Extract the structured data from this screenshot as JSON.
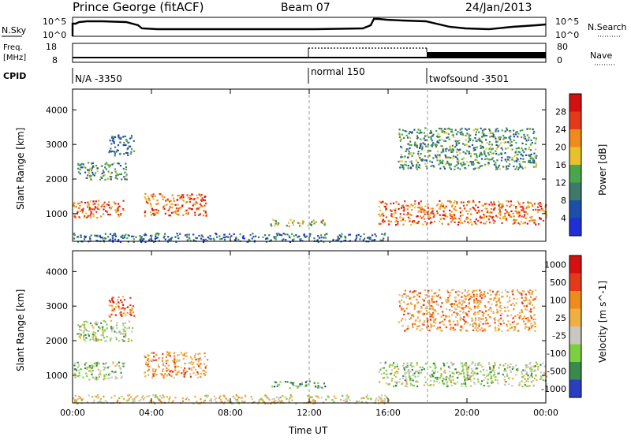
{
  "header": {
    "station": "Prince George (fitACF)",
    "beam": "Beam 07",
    "date": "24/Jan/2013"
  },
  "top_panels": {
    "nsky_label": "N.Sky",
    "nsky_tick_top": "10^5",
    "nsky_tick_bottom": "10^0",
    "nsearch_tick_top": "10^5",
    "nsearch_tick_bottom": "10^0",
    "nsearch_label": "N.Search",
    "freq_label_1": "Freq.",
    "freq_label_2": "[MHz]",
    "freq_tick_top": "18",
    "freq_tick_bottom": "8",
    "nave_tick_top": "80",
    "nave_tick_bottom": "0",
    "nave_label": "Nave",
    "cpid_label": "CPID",
    "cpid_segments": [
      {
        "label": "N/A -3350",
        "start_hour": 0
      },
      {
        "label": "normal 150",
        "start_hour": 12
      },
      {
        "label": "twofsound -3501",
        "start_hour": 18
      }
    ]
  },
  "chart_data": [
    {
      "type": "heatmap",
      "panel": "power",
      "ylabel": "Slant Range [km]",
      "xlabel": "",
      "xlim": [
        0,
        24
      ],
      "ylim": [
        200,
        4600
      ],
      "yticks": [
        1000,
        2000,
        3000,
        4000
      ],
      "colorbar": {
        "label": "Power [dB]",
        "ticks": [
          "4",
          "8",
          "12",
          "16",
          "20",
          "24",
          "28"
        ],
        "colors": [
          "#1f2fd8",
          "#1e4fa8",
          "#3d7a6a",
          "#4aa64a",
          "#e8c22c",
          "#f08a1c",
          "#e53a1a",
          "#d41010"
        ]
      },
      "echo_regions": [
        {
          "t0": 0.0,
          "t1": 2.6,
          "r0": 900,
          "r1": 1400,
          "level": 6
        },
        {
          "t0": 0.2,
          "t1": 2.8,
          "r0": 2000,
          "r1": 2500,
          "level": 3
        },
        {
          "t0": 1.8,
          "t1": 3.1,
          "r0": 2700,
          "r1": 3300,
          "level": 2
        },
        {
          "t0": 3.6,
          "t1": 6.8,
          "r0": 950,
          "r1": 1600,
          "level": 6
        },
        {
          "t0": 10.0,
          "t1": 12.8,
          "r0": 650,
          "r1": 850,
          "level": 4
        },
        {
          "t0": 15.5,
          "t1": 24.0,
          "r0": 700,
          "r1": 1400,
          "level": 6
        },
        {
          "t0": 16.5,
          "t1": 23.5,
          "r0": 2300,
          "r1": 3500,
          "level": 3
        },
        {
          "t0": 0.0,
          "t1": 16.0,
          "r0": 200,
          "r1": 450,
          "level": 2
        }
      ]
    },
    {
      "type": "heatmap",
      "panel": "velocity",
      "ylabel": "Slant Range [km]",
      "xlabel": "Time UT",
      "xlim": [
        0,
        24
      ],
      "ylim": [
        200,
        4600
      ],
      "yticks": [
        1000,
        2000,
        3000,
        4000
      ],
      "xticks": [
        "00:00",
        "04:00",
        "08:00",
        "12:00",
        "16:00",
        "20:00",
        "00:00"
      ],
      "colorbar": {
        "label": "Velocity [m s^-1]",
        "ticks": [
          "1000",
          "500",
          "100",
          "25",
          "-25",
          "-100",
          "-500",
          "-1000"
        ],
        "colors": [
          "#2a3fc0",
          "#3a8a4a",
          "#7bd040",
          "#c8c8c0",
          "#f0b040",
          "#f08a1c",
          "#e53a1a",
          "#d41010"
        ]
      },
      "echo_regions": [
        {
          "t0": 0.0,
          "t1": 2.6,
          "r0": 900,
          "r1": 1400,
          "level": 3
        },
        {
          "t0": 0.2,
          "t1": 3.0,
          "r0": 2000,
          "r1": 2600,
          "level": 3
        },
        {
          "t0": 1.8,
          "t1": 3.1,
          "r0": 2700,
          "r1": 3300,
          "level": 6
        },
        {
          "t0": 3.6,
          "t1": 6.8,
          "r0": 950,
          "r1": 1700,
          "level": 5
        },
        {
          "t0": 10.0,
          "t1": 12.8,
          "r0": 650,
          "r1": 850,
          "level": 2
        },
        {
          "t0": 15.5,
          "t1": 24.0,
          "r0": 700,
          "r1": 1400,
          "level": 3
        },
        {
          "t0": 16.5,
          "t1": 23.5,
          "r0": 2300,
          "r1": 3500,
          "level": 5
        },
        {
          "t0": 0.0,
          "t1": 16.0,
          "r0": 200,
          "r1": 450,
          "level": 4
        }
      ]
    }
  ]
}
